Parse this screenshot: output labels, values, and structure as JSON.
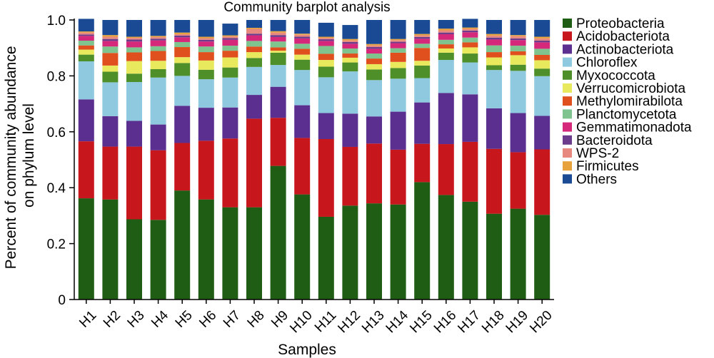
{
  "chart_data": {
    "type": "bar",
    "stacked": true,
    "title": "Community barplot analysis",
    "xlabel": "Samples",
    "ylabel": "Percent of community abundance on phylum level",
    "ylim": [
      0,
      1
    ],
    "yticks": [
      "0",
      "0.2",
      "0.4",
      "0.6",
      "0.8",
      "1.0"
    ],
    "legend_position": "right",
    "categories": [
      "H1",
      "H2",
      "H3",
      "H4",
      "H5",
      "H6",
      "H7",
      "H8",
      "H9",
      "H10",
      "H11",
      "H12",
      "H13",
      "H14",
      "H15",
      "H16",
      "H17",
      "H18",
      "H19",
      "H20"
    ],
    "series": [
      {
        "name": "Proteobacteria",
        "color": "#1f5c14",
        "values": [
          0.362,
          0.358,
          0.287,
          0.285,
          0.39,
          0.358,
          0.33,
          0.33,
          0.478,
          0.376,
          0.296,
          0.336,
          0.344,
          0.34,
          0.42,
          0.374,
          0.35,
          0.307,
          0.325,
          0.303
        ]
      },
      {
        "name": "Acidobacteriota",
        "color": "#c8161d",
        "values": [
          0.204,
          0.189,
          0.26,
          0.249,
          0.17,
          0.21,
          0.246,
          0.317,
          0.172,
          0.202,
          0.278,
          0.21,
          0.214,
          0.196,
          0.137,
          0.182,
          0.214,
          0.232,
          0.202,
          0.234
        ]
      },
      {
        "name": "Actinobacteriota",
        "color": "#5b2f8f",
        "values": [
          0.15,
          0.109,
          0.092,
          0.092,
          0.133,
          0.118,
          0.111,
          0.085,
          0.111,
          0.117,
          0.093,
          0.119,
          0.097,
          0.136,
          0.148,
          0.183,
          0.17,
          0.145,
          0.14,
          0.12
        ]
      },
      {
        "name": "Chloroflex",
        "color": "#8ec9df",
        "values": [
          0.136,
          0.121,
          0.139,
          0.168,
          0.107,
          0.102,
          0.107,
          0.1,
          0.078,
          0.126,
          0.128,
          0.151,
          0.13,
          0.118,
          0.087,
          0.118,
          0.114,
          0.137,
          0.151,
          0.142
        ]
      },
      {
        "name": "Myxococcota",
        "color": "#4e8f2a",
        "values": [
          0.024,
          0.038,
          0.03,
          0.03,
          0.046,
          0.034,
          0.036,
          0.032,
          0.044,
          0.037,
          0.038,
          0.032,
          0.038,
          0.038,
          0.045,
          0.026,
          0.032,
          0.017,
          0.022,
          0.027
        ]
      },
      {
        "name": "Verrucomicrobiota",
        "color": "#e9e95e",
        "values": [
          0.018,
          0.022,
          0.045,
          0.03,
          0.021,
          0.033,
          0.036,
          0.021,
          0.007,
          0.018,
          0.024,
          0.017,
          0.019,
          0.022,
          0.017,
          0.015,
          0.022,
          0.028,
          0.034,
          0.03
        ]
      },
      {
        "name": "Methylomirabilota",
        "color": "#e0501e",
        "values": [
          0.015,
          0.045,
          0.031,
          0.035,
          0.036,
          0.03,
          0.024,
          0.02,
          0.012,
          0.021,
          0.022,
          0.015,
          0.02,
          0.033,
          0.046,
          0.015,
          0.018,
          0.019,
          0.014,
          0.019
        ]
      },
      {
        "name": "Planctomycetota",
        "color": "#7fc48e",
        "values": [
          0.017,
          0.023,
          0.018,
          0.017,
          0.018,
          0.02,
          0.018,
          0.02,
          0.021,
          0.018,
          0.028,
          0.018,
          0.018,
          0.016,
          0.015,
          0.016,
          0.017,
          0.024,
          0.02,
          0.022
        ]
      },
      {
        "name": "Gemmatimonadota",
        "color": "#d6287a",
        "values": [
          0.017,
          0.02,
          0.021,
          0.021,
          0.017,
          0.018,
          0.021,
          0.02,
          0.016,
          0.019,
          0.018,
          0.017,
          0.017,
          0.018,
          0.018,
          0.02,
          0.019,
          0.021,
          0.02,
          0.023
        ]
      },
      {
        "name": "Bacteroidota",
        "color": "#6c3c8c",
        "values": [
          0.005,
          0.007,
          0.007,
          0.006,
          0.006,
          0.006,
          0.006,
          0.006,
          0.007,
          0.006,
          0.006,
          0.006,
          0.006,
          0.005,
          0.006,
          0.006,
          0.006,
          0.007,
          0.006,
          0.006
        ]
      },
      {
        "name": "WPS-2",
        "color": "#e8897f",
        "values": [
          0.007,
          0.008,
          0.006,
          0.006,
          0.005,
          0.006,
          0.006,
          0.017,
          0.009,
          0.007,
          0.005,
          0.006,
          0.006,
          0.006,
          0.006,
          0.008,
          0.006,
          0.007,
          0.008,
          0.008
        ]
      },
      {
        "name": "Firmicutes",
        "color": "#e8a23c",
        "values": [
          0.004,
          0.006,
          0.004,
          0.004,
          0.006,
          0.005,
          0.004,
          0.004,
          0.005,
          0.004,
          0.004,
          0.005,
          0.005,
          0.004,
          0.005,
          0.006,
          0.005,
          0.006,
          0.004,
          0.006
        ]
      },
      {
        "name": "Others",
        "color": "#1a4a94",
        "values": [
          0.045,
          0.054,
          0.06,
          0.057,
          0.045,
          0.06,
          0.042,
          0.028,
          0.04,
          0.049,
          0.05,
          0.05,
          0.086,
          0.068,
          0.05,
          0.031,
          0.031,
          0.05,
          0.054,
          0.06
        ]
      }
    ]
  }
}
